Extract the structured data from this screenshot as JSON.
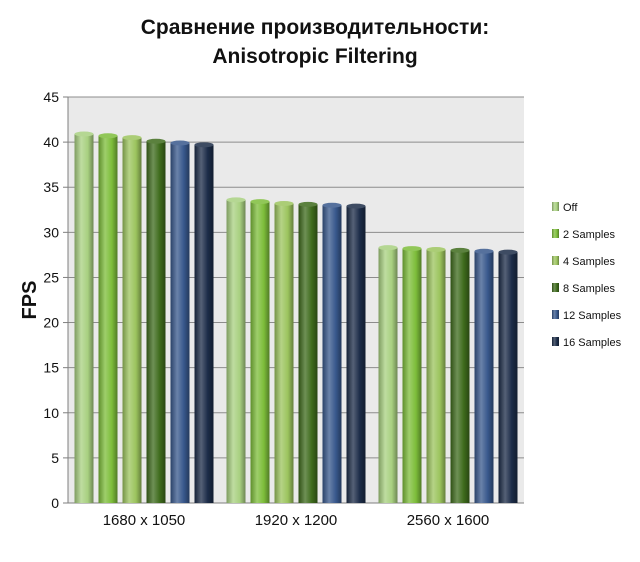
{
  "chart_data": {
    "type": "bar",
    "title": "Сравнение производительности:",
    "subtitle": "Anisotropic Filtering",
    "xlabel": "",
    "ylabel": "FPS",
    "ylim": [
      0,
      45
    ],
    "yticks": [
      0,
      5,
      10,
      15,
      20,
      25,
      30,
      35,
      40,
      45
    ],
    "grid": true,
    "legend": "right",
    "categories": [
      "1680 x 1050",
      "1920 x 1200",
      "2560 x 1600"
    ],
    "series": [
      {
        "name": "Off",
        "color": "#a8d080",
        "values": [
          40.9,
          33.6,
          28.3
        ]
      },
      {
        "name": "2 Samples",
        "color": "#7dbd3a",
        "values": [
          40.7,
          33.4,
          28.2
        ]
      },
      {
        "name": "4 Samples",
        "color": "#9cc45e",
        "values": [
          40.5,
          33.2,
          28.1
        ]
      },
      {
        "name": "8 Samples",
        "color": "#3e6b1c",
        "values": [
          40.1,
          33.1,
          28.0
        ]
      },
      {
        "name": "12 Samples",
        "color": "#38588c",
        "values": [
          39.9,
          33.0,
          27.9
        ]
      },
      {
        "name": "16 Samples",
        "color": "#1c2c48",
        "values": [
          39.7,
          32.9,
          27.8
        ]
      }
    ]
  }
}
